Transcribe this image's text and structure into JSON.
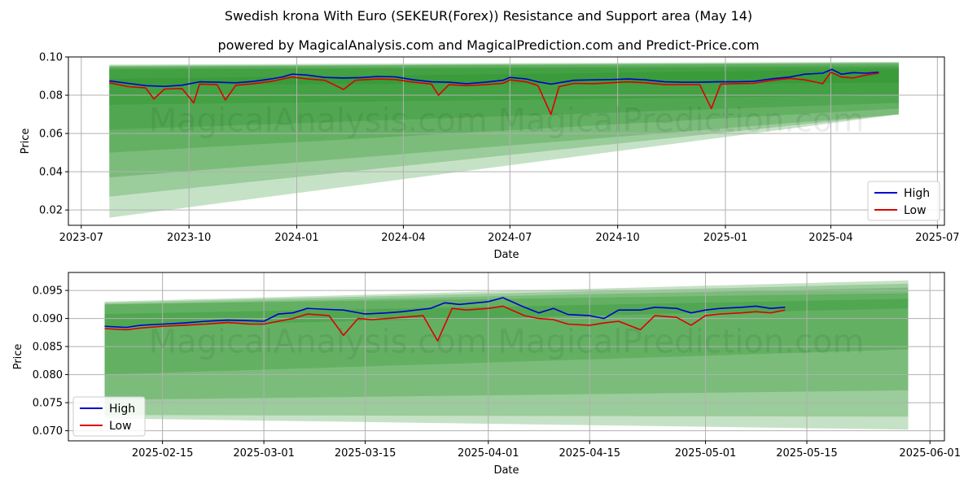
{
  "title": "Swedish krona With Euro (SEKEUR(Forex)) Resistance and Support area (May 14)",
  "subtitle": "powered by MagicalAnalysis.com and MagicalPrediction.com and Predict-Price.com",
  "watermarks": [
    "MagicalAnalysis.com",
    "MagicalPrediction.com"
  ],
  "colors": {
    "high": "#0000cc",
    "low": "#dd0000",
    "band": "#1a8c1a",
    "grid": "#b0b0b0"
  },
  "chart_data": [
    {
      "type": "line",
      "name": "full-range",
      "xlabel": "Date",
      "ylabel": "Price",
      "xlim": [
        "2023-06-20",
        "2025-07-07"
      ],
      "ylim": [
        0.012,
        0.1
      ],
      "x_ticks": [
        "2023-07",
        "2023-10",
        "2024-01",
        "2024-04",
        "2024-07",
        "2024-10",
        "2025-01",
        "2025-04",
        "2025-07"
      ],
      "x_tick_dates": [
        "2023-07-01",
        "2023-10-01",
        "2024-01-01",
        "2024-04-01",
        "2024-07-01",
        "2024-10-01",
        "2025-01-01",
        "2025-04-01",
        "2025-07-01"
      ],
      "y_ticks": [
        "0.02",
        "0.04",
        "0.06",
        "0.08",
        "0.10"
      ],
      "y_tick_values": [
        0.02,
        0.04,
        0.06,
        0.08,
        0.1
      ],
      "legend": [
        "High",
        "Low"
      ],
      "legend_position": "lower-right",
      "bands_range": [
        "2023-07-25",
        "2025-05-29"
      ],
      "bands": [
        {
          "start": [
            0.0855,
            0.0885
          ],
          "end": [
            0.0865,
            0.0935
          ]
        },
        {
          "start": [
            0.075,
            0.0935
          ],
          "end": [
            0.08,
            0.0945
          ]
        },
        {
          "start": [
            0.062,
            0.094
          ],
          "end": [
            0.076,
            0.0955
          ]
        },
        {
          "start": [
            0.05,
            0.095
          ],
          "end": [
            0.073,
            0.0965
          ]
        },
        {
          "start": [
            0.037,
            0.095
          ],
          "end": [
            0.07,
            0.097
          ]
        },
        {
          "start": [
            0.027,
            0.0955
          ],
          "end": [
            0.07,
            0.097
          ]
        },
        {
          "start": [
            0.016,
            0.096
          ],
          "end": [
            0.07,
            0.0975
          ]
        }
      ],
      "series": [
        {
          "name": "High",
          "points": [
            [
              "2023-07-25",
              0.0875
            ],
            [
              "2023-08-10",
              0.0862
            ],
            [
              "2023-08-25",
              0.085
            ],
            [
              "2023-09-10",
              0.0846
            ],
            [
              "2023-09-25",
              0.0852
            ],
            [
              "2023-10-10",
              0.087
            ],
            [
              "2023-10-25",
              0.0868
            ],
            [
              "2023-11-10",
              0.0865
            ],
            [
              "2023-11-25",
              0.0872
            ],
            [
              "2023-12-10",
              0.0885
            ],
            [
              "2023-12-20",
              0.0896
            ],
            [
              "2023-12-28",
              0.091
            ],
            [
              "2024-01-10",
              0.0905
            ],
            [
              "2024-01-25",
              0.0893
            ],
            [
              "2024-02-10",
              0.089
            ],
            [
              "2024-02-25",
              0.0892
            ],
            [
              "2024-03-10",
              0.0898
            ],
            [
              "2024-03-25",
              0.0896
            ],
            [
              "2024-04-10",
              0.088
            ],
            [
              "2024-04-25",
              0.087
            ],
            [
              "2024-05-10",
              0.0868
            ],
            [
              "2024-05-25",
              0.086
            ],
            [
              "2024-06-10",
              0.0868
            ],
            [
              "2024-06-25",
              0.0878
            ],
            [
              "2024-07-01",
              0.0893
            ],
            [
              "2024-07-15",
              0.0885
            ],
            [
              "2024-07-25",
              0.087
            ],
            [
              "2024-08-05",
              0.0858
            ],
            [
              "2024-08-15",
              0.0868
            ],
            [
              "2024-08-25",
              0.0878
            ],
            [
              "2024-09-10",
              0.088
            ],
            [
              "2024-09-25",
              0.0882
            ],
            [
              "2024-10-10",
              0.0885
            ],
            [
              "2024-10-25",
              0.088
            ],
            [
              "2024-11-10",
              0.087
            ],
            [
              "2024-11-25",
              0.0868
            ],
            [
              "2024-12-10",
              0.0868
            ],
            [
              "2024-12-25",
              0.087
            ],
            [
              "2025-01-10",
              0.087
            ],
            [
              "2025-01-25",
              0.0872
            ],
            [
              "2025-02-10",
              0.0886
            ],
            [
              "2025-02-25",
              0.0895
            ],
            [
              "2025-03-10",
              0.091
            ],
            [
              "2025-03-25",
              0.0915
            ],
            [
              "2025-04-02",
              0.0935
            ],
            [
              "2025-04-10",
              0.091
            ],
            [
              "2025-04-20",
              0.0918
            ],
            [
              "2025-05-01",
              0.0915
            ],
            [
              "2025-05-12",
              0.092
            ]
          ]
        },
        {
          "name": "Low",
          "points": [
            [
              "2023-07-25",
              0.0865
            ],
            [
              "2023-08-10",
              0.0845
            ],
            [
              "2023-08-25",
              0.0838
            ],
            [
              "2023-09-01",
              0.078
            ],
            [
              "2023-09-10",
              0.0832
            ],
            [
              "2023-09-25",
              0.0835
            ],
            [
              "2023-10-05",
              0.076
            ],
            [
              "2023-10-10",
              0.0858
            ],
            [
              "2023-10-25",
              0.0855
            ],
            [
              "2023-11-01",
              0.0775
            ],
            [
              "2023-11-10",
              0.0852
            ],
            [
              "2023-11-25",
              0.086
            ],
            [
              "2023-12-10",
              0.0872
            ],
            [
              "2023-12-28",
              0.0895
            ],
            [
              "2024-01-10",
              0.0885
            ],
            [
              "2024-01-25",
              0.0878
            ],
            [
              "2024-02-10",
              0.083
            ],
            [
              "2024-02-20",
              0.0878
            ],
            [
              "2024-03-10",
              0.0885
            ],
            [
              "2024-03-25",
              0.0882
            ],
            [
              "2024-04-10",
              0.0868
            ],
            [
              "2024-04-25",
              0.0858
            ],
            [
              "2024-05-01",
              0.08
            ],
            [
              "2024-05-10",
              0.0855
            ],
            [
              "2024-05-25",
              0.085
            ],
            [
              "2024-06-10",
              0.0855
            ],
            [
              "2024-06-25",
              0.0862
            ],
            [
              "2024-07-01",
              0.088
            ],
            [
              "2024-07-15",
              0.087
            ],
            [
              "2024-07-25",
              0.085
            ],
            [
              "2024-08-05",
              0.07
            ],
            [
              "2024-08-12",
              0.0845
            ],
            [
              "2024-08-25",
              0.0862
            ],
            [
              "2024-09-10",
              0.086
            ],
            [
              "2024-09-25",
              0.0865
            ],
            [
              "2024-10-10",
              0.087
            ],
            [
              "2024-10-25",
              0.0865
            ],
            [
              "2024-11-10",
              0.0855
            ],
            [
              "2024-11-25",
              0.0855
            ],
            [
              "2024-12-10",
              0.0855
            ],
            [
              "2024-12-20",
              0.073
            ],
            [
              "2024-12-28",
              0.0858
            ],
            [
              "2025-01-10",
              0.086
            ],
            [
              "2025-01-25",
              0.0862
            ],
            [
              "2025-02-10",
              0.0878
            ],
            [
              "2025-02-25",
              0.0888
            ],
            [
              "2025-03-10",
              0.088
            ],
            [
              "2025-03-25",
              0.086
            ],
            [
              "2025-04-01",
              0.092
            ],
            [
              "2025-04-10",
              0.0895
            ],
            [
              "2025-04-20",
              0.089
            ],
            [
              "2025-05-01",
              0.0905
            ],
            [
              "2025-05-12",
              0.0915
            ]
          ]
        }
      ]
    },
    {
      "type": "line",
      "name": "zoomed",
      "xlabel": "Date",
      "ylabel": "Price",
      "xlim": [
        "2025-02-02",
        "2025-06-03"
      ],
      "ylim": [
        0.0682,
        0.0982
      ],
      "x_ticks": [
        "2025-02-15",
        "2025-03-01",
        "2025-03-15",
        "2025-04-01",
        "2025-04-15",
        "2025-05-01",
        "2025-05-15",
        "2025-06-01"
      ],
      "x_tick_dates": [
        "2025-02-15",
        "2025-03-01",
        "2025-03-15",
        "2025-04-01",
        "2025-04-15",
        "2025-05-01",
        "2025-05-15",
        "2025-06-01"
      ],
      "y_ticks": [
        "0.070",
        "0.075",
        "0.080",
        "0.085",
        "0.090",
        "0.095"
      ],
      "y_tick_values": [
        0.07,
        0.075,
        0.08,
        0.085,
        0.09,
        0.095
      ],
      "legend": [
        "High",
        "Low"
      ],
      "legend_position": "lower-left",
      "bands_range": [
        "2025-02-07",
        "2025-05-29"
      ],
      "bands": [
        {
          "start": [
            0.0885,
            0.0908
          ],
          "end": [
            0.0918,
            0.0935
          ]
        },
        {
          "start": [
            0.08,
            0.0925
          ],
          "end": [
            0.0845,
            0.0945
          ]
        },
        {
          "start": [
            0.0755,
            0.0925
          ],
          "end": [
            0.0772,
            0.0955
          ]
        },
        {
          "start": [
            0.0728,
            0.0928
          ],
          "end": [
            0.0725,
            0.0962
          ]
        },
        {
          "start": [
            0.0722,
            0.093
          ],
          "end": [
            0.0702,
            0.0968
          ]
        }
      ],
      "series": [
        {
          "name": "High",
          "points": [
            [
              "2025-02-07",
              0.0886
            ],
            [
              "2025-02-10",
              0.0884
            ],
            [
              "2025-02-12",
              0.0888
            ],
            [
              "2025-02-15",
              0.089
            ],
            [
              "2025-02-18",
              0.0892
            ],
            [
              "2025-02-21",
              0.0895
            ],
            [
              "2025-02-24",
              0.0897
            ],
            [
              "2025-02-27",
              0.0896
            ],
            [
              "2025-03-01",
              0.0895
            ],
            [
              "2025-03-03",
              0.0908
            ],
            [
              "2025-03-05",
              0.091
            ],
            [
              "2025-03-07",
              0.0918
            ],
            [
              "2025-03-10",
              0.0916
            ],
            [
              "2025-03-12",
              0.0915
            ],
            [
              "2025-03-15",
              0.0908
            ],
            [
              "2025-03-18",
              0.091
            ],
            [
              "2025-03-20",
              0.0912
            ],
            [
              "2025-03-24",
              0.0918
            ],
            [
              "2025-03-26",
              0.0928
            ],
            [
              "2025-03-28",
              0.0925
            ],
            [
              "2025-04-01",
              0.093
            ],
            [
              "2025-04-03",
              0.0937
            ],
            [
              "2025-04-06",
              0.092
            ],
            [
              "2025-04-08",
              0.091
            ],
            [
              "2025-04-10",
              0.0918
            ],
            [
              "2025-04-12",
              0.0907
            ],
            [
              "2025-04-15",
              0.0905
            ],
            [
              "2025-04-17",
              0.09
            ],
            [
              "2025-04-19",
              0.0915
            ],
            [
              "2025-04-22",
              0.0915
            ],
            [
              "2025-04-24",
              0.092
            ],
            [
              "2025-04-27",
              0.0918
            ],
            [
              "2025-04-29",
              0.091
            ],
            [
              "2025-05-01",
              0.0915
            ],
            [
              "2025-05-03",
              0.0918
            ],
            [
              "2025-05-06",
              0.092
            ],
            [
              "2025-05-08",
              0.0922
            ],
            [
              "2025-05-10",
              0.0918
            ],
            [
              "2025-05-12",
              0.092
            ]
          ]
        },
        {
          "name": "Low",
          "points": [
            [
              "2025-02-07",
              0.0882
            ],
            [
              "2025-02-10",
              0.088
            ],
            [
              "2025-02-12",
              0.0883
            ],
            [
              "2025-02-15",
              0.0886
            ],
            [
              "2025-02-18",
              0.0888
            ],
            [
              "2025-02-21",
              0.089
            ],
            [
              "2025-02-24",
              0.0893
            ],
            [
              "2025-02-27",
              0.089
            ],
            [
              "2025-03-01",
              0.089
            ],
            [
              "2025-03-03",
              0.0895
            ],
            [
              "2025-03-05",
              0.09
            ],
            [
              "2025-03-07",
              0.0908
            ],
            [
              "2025-03-10",
              0.0905
            ],
            [
              "2025-03-12",
              0.087
            ],
            [
              "2025-03-14",
              0.09
            ],
            [
              "2025-03-16",
              0.0898
            ],
            [
              "2025-03-20",
              0.0902
            ],
            [
              "2025-03-23",
              0.0905
            ],
            [
              "2025-03-25",
              0.086
            ],
            [
              "2025-03-27",
              0.0918
            ],
            [
              "2025-03-29",
              0.0915
            ],
            [
              "2025-04-01",
              0.0918
            ],
            [
              "2025-04-03",
              0.0922
            ],
            [
              "2025-04-06",
              0.0905
            ],
            [
              "2025-04-08",
              0.09
            ],
            [
              "2025-04-10",
              0.0898
            ],
            [
              "2025-04-12",
              0.089
            ],
            [
              "2025-04-15",
              0.0888
            ],
            [
              "2025-04-17",
              0.0892
            ],
            [
              "2025-04-19",
              0.0895
            ],
            [
              "2025-04-22",
              0.088
            ],
            [
              "2025-04-24",
              0.0905
            ],
            [
              "2025-04-27",
              0.0902
            ],
            [
              "2025-04-29",
              0.0888
            ],
            [
              "2025-05-01",
              0.0905
            ],
            [
              "2025-05-03",
              0.0908
            ],
            [
              "2025-05-06",
              0.091
            ],
            [
              "2025-05-08",
              0.0912
            ],
            [
              "2025-05-10",
              0.091
            ],
            [
              "2025-05-12",
              0.0915
            ]
          ]
        }
      ]
    }
  ]
}
